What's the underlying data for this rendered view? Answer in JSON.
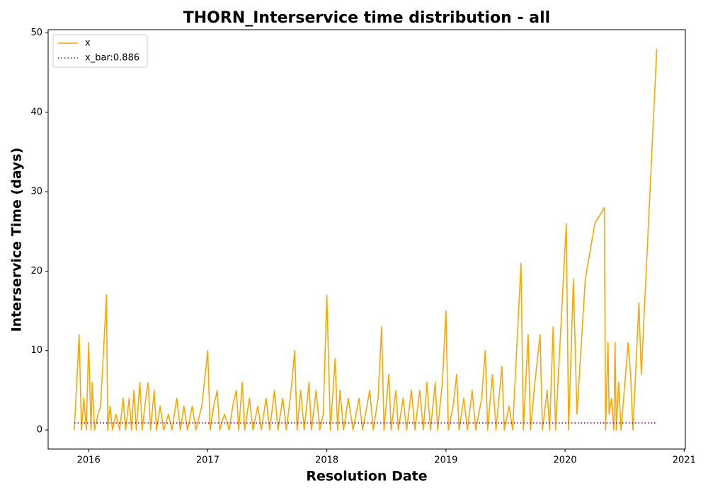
{
  "chart_data": {
    "type": "line",
    "title": "THORN_Interservice time distribution - all",
    "xlabel": "Resolution Date",
    "ylabel": "Interservice Time (days)",
    "xlim": [
      2015.66,
      2021.01
    ],
    "ylim": [
      -2.4,
      50.4
    ],
    "xticks": [
      2016,
      2017,
      2018,
      2019,
      2020,
      2021
    ],
    "yticks": [
      0,
      10,
      20,
      30,
      40,
      50
    ],
    "legend": "upper left",
    "series": [
      {
        "name": "x",
        "color": "#ffa500",
        "style": "solid",
        "x": [
          2015.88,
          2015.92,
          2015.94,
          2015.96,
          2015.98,
          2016.0,
          2016.02,
          2016.03,
          2016.05,
          2016.08,
          2016.1,
          2016.15,
          2016.16,
          2016.18,
          2016.2,
          2016.23,
          2016.26,
          2016.29,
          2016.31,
          2016.34,
          2016.36,
          2016.38,
          2016.4,
          2016.43,
          2016.45,
          2016.48,
          2016.5,
          2016.52,
          2016.55,
          2016.57,
          2016.6,
          2016.63,
          2016.67,
          2016.7,
          2016.74,
          2016.77,
          2016.8,
          2016.83,
          2016.87,
          2016.9,
          2016.95,
          2017.0,
          2017.02,
          2017.05,
          2017.08,
          2017.1,
          2017.14,
          2017.18,
          2017.21,
          2017.24,
          2017.26,
          2017.29,
          2017.31,
          2017.35,
          2017.38,
          2017.42,
          2017.45,
          2017.49,
          2017.52,
          2017.56,
          2017.59,
          2017.63,
          2017.66,
          2017.7,
          2017.73,
          2017.75,
          2017.78,
          2017.81,
          2017.85,
          2017.87,
          2017.91,
          2017.94,
          2017.97,
          2018.0,
          2018.03,
          2018.07,
          2018.09,
          2018.11,
          2018.14,
          2018.18,
          2018.22,
          2018.27,
          2018.3,
          2018.36,
          2018.39,
          2018.43,
          2018.46,
          2018.48,
          2018.52,
          2018.54,
          2018.58,
          2018.6,
          2018.64,
          2018.67,
          2018.71,
          2018.74,
          2018.78,
          2018.81,
          2018.84,
          2018.87,
          2018.91,
          2018.93,
          2018.97,
          2019.0,
          2019.02,
          2019.06,
          2019.09,
          2019.11,
          2019.15,
          2019.18,
          2019.22,
          2019.25,
          2019.3,
          2019.33,
          2019.35,
          2019.39,
          2019.42,
          2019.47,
          2019.49,
          2019.53,
          2019.56,
          2019.63,
          2019.65,
          2019.69,
          2019.71,
          2019.74,
          2019.79,
          2019.81,
          2019.85,
          2019.87,
          2019.9,
          2019.92,
          2020.01,
          2020.03,
          2020.07,
          2020.1,
          2020.17,
          2020.25,
          2020.33,
          2020.34,
          2020.36,
          2020.37,
          2020.39,
          2020.41,
          2020.42,
          2020.43,
          2020.45,
          2020.47,
          2020.53,
          2020.55,
          2020.57,
          2020.62,
          2020.64,
          2020.77
        ],
        "values": [
          0,
          12,
          0,
          4,
          0,
          11,
          0,
          6,
          0,
          2,
          3,
          17,
          0,
          3,
          0,
          2,
          0,
          4,
          0,
          4,
          0,
          5,
          0,
          6,
          0,
          4,
          6,
          0,
          5,
          0,
          3,
          0,
          2,
          0,
          4,
          0,
          3,
          0,
          3,
          0,
          3,
          10,
          0,
          3,
          5,
          0,
          2,
          0,
          3,
          5,
          0,
          6,
          0,
          4,
          0,
          3,
          0,
          4,
          0,
          5,
          0,
          4,
          0,
          5,
          10,
          0,
          5,
          0,
          6,
          0,
          5,
          0,
          2,
          17,
          0,
          9,
          0,
          5,
          0,
          4,
          0,
          4,
          0,
          5,
          0,
          4,
          13,
          0,
          7,
          0,
          5,
          0,
          4,
          0,
          5,
          0,
          5,
          0,
          6,
          0,
          6,
          0,
          6,
          15,
          0,
          3,
          7,
          0,
          4,
          0,
          5,
          0,
          4,
          10,
          0,
          7,
          0,
          8,
          0,
          3,
          0,
          21,
          0,
          12,
          0,
          5,
          12,
          0,
          5,
          0,
          13,
          0,
          26,
          0,
          19,
          2,
          19,
          26,
          28,
          0,
          11,
          2,
          4,
          0,
          11,
          0,
          6,
          0,
          11,
          7,
          0,
          16,
          7,
          48
        ]
      },
      {
        "name": "x_bar:0.886",
        "color": "#800080",
        "style": "dotted",
        "x": [
          2015.88,
          2020.77
        ],
        "values": [
          0.886,
          0.886
        ]
      }
    ]
  }
}
